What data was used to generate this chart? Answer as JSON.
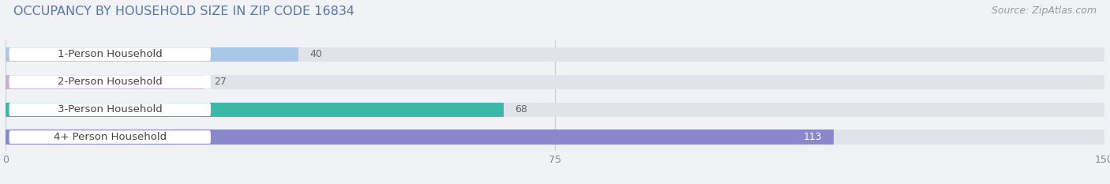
{
  "title": "OCCUPANCY BY HOUSEHOLD SIZE IN ZIP CODE 16834",
  "source": "Source: ZipAtlas.com",
  "categories": [
    "1-Person Household",
    "2-Person Household",
    "3-Person Household",
    "4+ Person Household"
  ],
  "values": [
    40,
    27,
    68,
    113
  ],
  "bar_colors": [
    "#a8c8e8",
    "#c8b0cc",
    "#3bb8a8",
    "#8888cc"
  ],
  "value_label_colors": [
    "#666666",
    "#666666",
    "#666666",
    "#ffffff"
  ],
  "xlim": [
    0,
    150
  ],
  "xticks": [
    0,
    75,
    150
  ],
  "bg_color": "#f0f2f5",
  "bar_bg_color": "#e0e4ea",
  "title_color": "#5577aa",
  "source_color": "#999999",
  "title_fontsize": 11.5,
  "source_fontsize": 9,
  "label_fontsize": 9.5,
  "value_fontsize": 9,
  "tick_fontsize": 9,
  "label_box_color": "#ffffff",
  "label_text_color": "#444444"
}
